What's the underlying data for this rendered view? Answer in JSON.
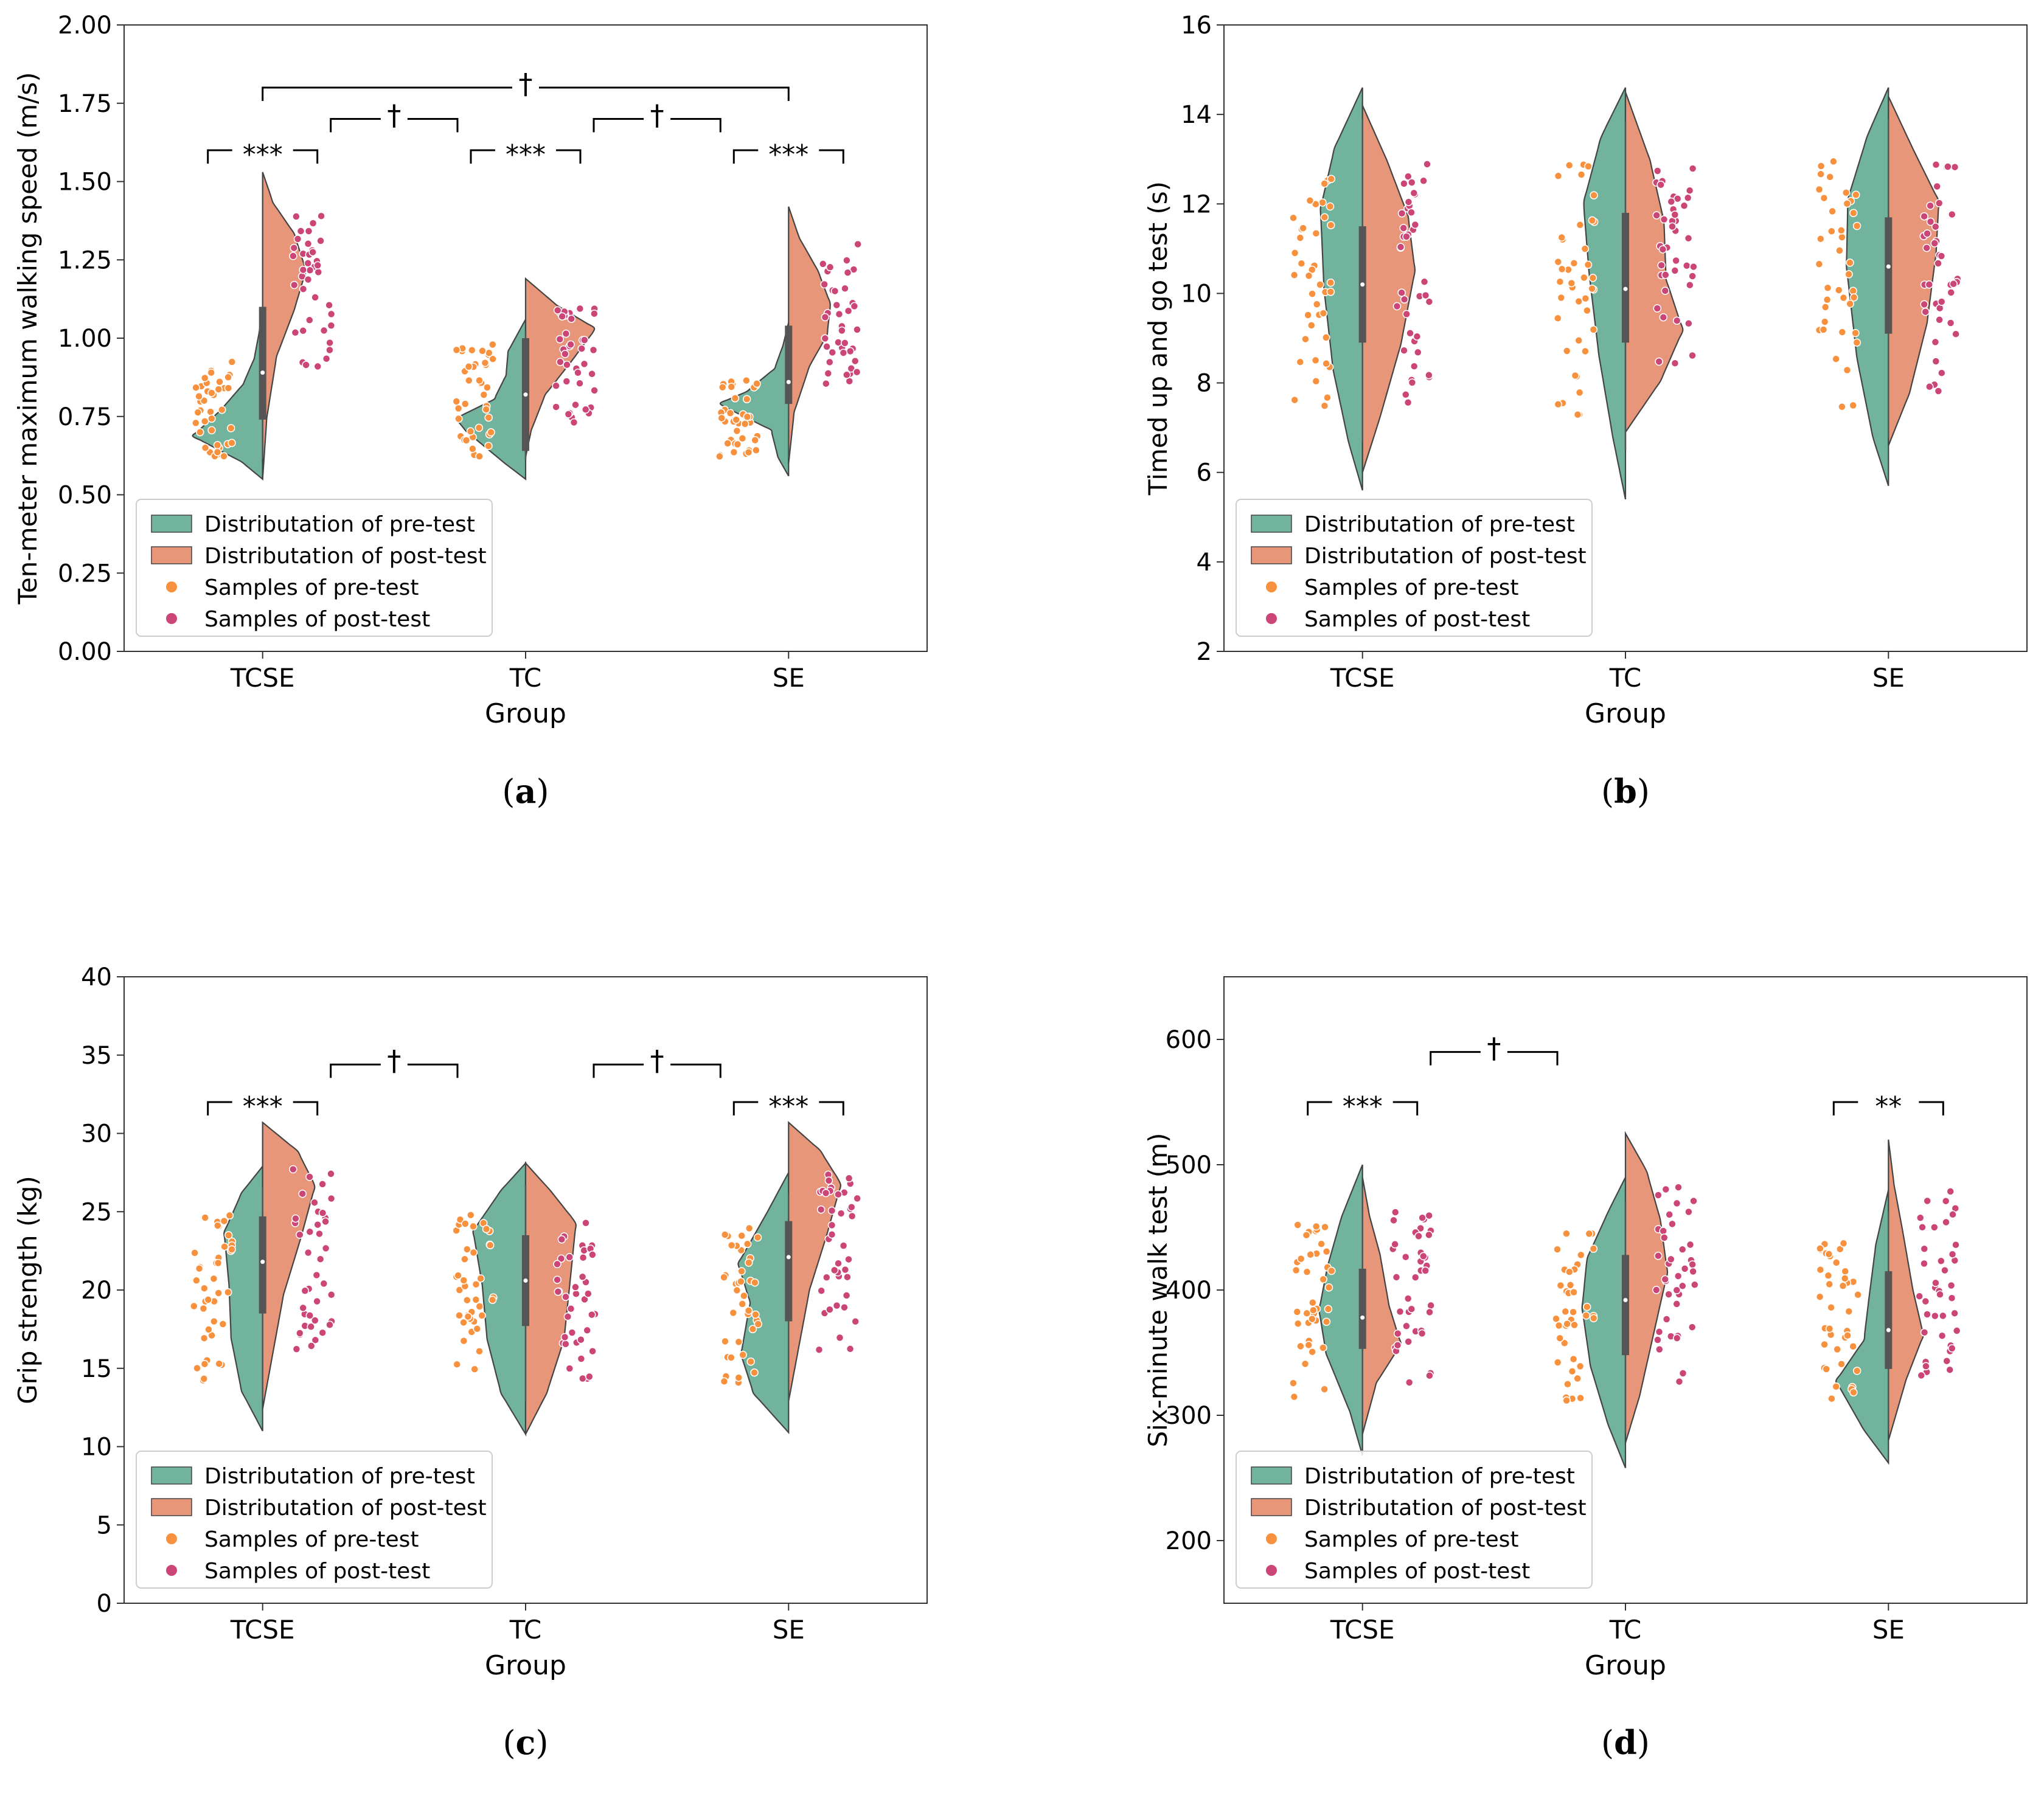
{
  "colors": {
    "pre": "#72b39e",
    "post": "#e8967a",
    "pre_dot": "#f7913e",
    "post_dot": "#cc4577",
    "outline": "#444444",
    "box": "#555555"
  },
  "legend": {
    "dist_pre": "Distributation of pre-test",
    "dist_post": "Distributation of post-test",
    "samp_pre": "Samples of pre-test",
    "samp_post": "Samples of post-test"
  },
  "chart_data": [
    {
      "id": "a",
      "type": "split-violin",
      "caption": "a",
      "ylabel": "Ten-meter maximum walking speed (m/s)",
      "xlabel": "Group",
      "categories": [
        "TCSE",
        "TC",
        "SE"
      ],
      "ylim": [
        0,
        2
      ],
      "yticks": [
        0,
        0.25,
        0.5,
        0.75,
        1.0,
        1.25,
        1.5,
        1.75,
        2.0
      ],
      "ytick_labels": [
        "0.00",
        "0.25",
        "0.50",
        "0.75",
        "1.00",
        "1.25",
        "1.50",
        "1.75",
        "2.00"
      ],
      "series": [
        {
          "name": "pre",
          "groups": [
            {
              "min": 0.55,
              "max": 1.1,
              "q1": 0.74,
              "median": 0.89,
              "q3": 1.1,
              "sample_min": 0.61,
              "sample_max": 0.93
            },
            {
              "min": 0.55,
              "max": 1.06,
              "q1": 0.64,
              "median": 0.82,
              "q3": 1.0,
              "sample_min": 0.62,
              "sample_max": 0.98
            },
            {
              "min": 0.56,
              "max": 1.05,
              "q1": 0.79,
              "median": 0.86,
              "q3": 1.04,
              "sample_min": 0.61,
              "sample_max": 0.87
            }
          ]
        },
        {
          "name": "post",
          "groups": [
            {
              "min": 0.55,
              "max": 1.53,
              "sample_min": 0.87,
              "sample_max": 1.39
            },
            {
              "min": 0.62,
              "max": 1.19,
              "sample_min": 0.73,
              "sample_max": 1.1
            },
            {
              "min": 0.6,
              "max": 1.42,
              "sample_min": 0.84,
              "sample_max": 1.3
            }
          ]
        }
      ],
      "annotations": [
        {
          "label": "***",
          "from": 0,
          "to": 0,
          "y": 1.6
        },
        {
          "label": "†",
          "from": 0,
          "to": 1,
          "y": 1.7
        },
        {
          "label": "***",
          "from": 1,
          "to": 1,
          "y": 1.6
        },
        {
          "label": "†",
          "from": 1,
          "to": 2,
          "y": 1.7
        },
        {
          "label": "***",
          "from": 2,
          "to": 2,
          "y": 1.6
        },
        {
          "label": "†",
          "from": 0,
          "to": 2,
          "y": 1.8
        }
      ]
    },
    {
      "id": "b",
      "type": "split-violin",
      "caption": "b",
      "ylabel": "Timed up and go test (s)",
      "xlabel": "Group",
      "categories": [
        "TCSE",
        "TC",
        "SE"
      ],
      "ylim": [
        2,
        16
      ],
      "yticks": [
        2,
        4,
        6,
        8,
        10,
        12,
        14,
        16
      ],
      "ytick_labels": [
        "2",
        "4",
        "6",
        "8",
        "10",
        "12",
        "14",
        "16"
      ],
      "series": [
        {
          "name": "pre",
          "groups": [
            {
              "min": 5.6,
              "max": 14.6,
              "q1": 8.9,
              "median": 10.2,
              "q3": 11.5,
              "sample_min": 7.2,
              "sample_max": 13.0
            },
            {
              "min": 5.4,
              "max": 14.6,
              "q1": 8.9,
              "median": 10.1,
              "q3": 11.8,
              "sample_min": 7.0,
              "sample_max": 12.9
            },
            {
              "min": 5.7,
              "max": 14.6,
              "q1": 9.1,
              "median": 10.6,
              "q3": 11.7,
              "sample_min": 7.3,
              "sample_max": 13.0
            }
          ]
        },
        {
          "name": "post",
          "groups": [
            {
              "min": 6.0,
              "max": 14.2,
              "sample_min": 7.3,
              "sample_max": 12.9
            },
            {
              "min": 6.9,
              "max": 14.5,
              "sample_min": 8.1,
              "sample_max": 12.9
            },
            {
              "min": 6.6,
              "max": 14.4,
              "sample_min": 7.8,
              "sample_max": 12.9
            }
          ]
        }
      ],
      "annotations": []
    },
    {
      "id": "c",
      "type": "split-violin",
      "caption": "c",
      "ylabel": "Grip strength (kg)",
      "xlabel": "Group",
      "categories": [
        "TCSE",
        "TC",
        "SE"
      ],
      "ylim": [
        0,
        40
      ],
      "yticks": [
        0,
        5,
        10,
        15,
        20,
        25,
        30,
        35,
        40
      ],
      "ytick_labels": [
        "0",
        "5",
        "10",
        "15",
        "20",
        "25",
        "30",
        "35",
        "40"
      ],
      "series": [
        {
          "name": "pre",
          "groups": [
            {
              "min": 11.0,
              "max": 27.9,
              "q1": 18.5,
              "median": 21.8,
              "q3": 24.7,
              "sample_min": 14.2,
              "sample_max": 24.8
            },
            {
              "min": 10.8,
              "max": 28.1,
              "q1": 17.7,
              "median": 20.6,
              "q3": 23.5,
              "sample_min": 14.1,
              "sample_max": 25.0
            },
            {
              "min": 10.9,
              "max": 27.5,
              "q1": 18.0,
              "median": 22.1,
              "q3": 24.4,
              "sample_min": 14.0,
              "sample_max": 24.4
            }
          ]
        },
        {
          "name": "post",
          "groups": [
            {
              "min": 12.4,
              "max": 30.7,
              "sample_min": 15.7,
              "sample_max": 28.0
            },
            {
              "min": 10.8,
              "max": 28.1,
              "sample_min": 14.3,
              "sample_max": 24.9
            },
            {
              "min": 12.9,
              "max": 30.7,
              "sample_min": 15.5,
              "sample_max": 28.0
            }
          ]
        }
      ],
      "annotations": [
        {
          "label": "***",
          "from": 0,
          "to": 0,
          "y": 32
        },
        {
          "label": "†",
          "from": 0,
          "to": 1,
          "y": 34.4
        },
        {
          "label": "†",
          "from": 1,
          "to": 2,
          "y": 34.4
        },
        {
          "label": "***",
          "from": 2,
          "to": 2,
          "y": 32
        }
      ]
    },
    {
      "id": "d",
      "type": "split-violin",
      "caption": "d",
      "ylabel": "Six-minute walk test (m)",
      "xlabel": "Group",
      "categories": [
        "TCSE",
        "TC",
        "SE"
      ],
      "ylim": [
        150,
        650
      ],
      "yticks": [
        200,
        300,
        400,
        500,
        600
      ],
      "ytick_labels": [
        "200",
        "300",
        "400",
        "500",
        "600"
      ],
      "series": [
        {
          "name": "pre",
          "groups": [
            {
              "min": 268,
              "max": 500,
              "q1": 353,
              "median": 378,
              "q3": 417,
              "sample_min": 306,
              "sample_max": 452
            },
            {
              "min": 258,
              "max": 490,
              "q1": 348,
              "median": 392,
              "q3": 428,
              "sample_min": 302,
              "sample_max": 447
            },
            {
              "min": 262,
              "max": 480,
              "q1": 337,
              "median": 368,
              "q3": 415,
              "sample_min": 302,
              "sample_max": 440
            }
          ]
        },
        {
          "name": "post",
          "groups": [
            {
              "min": 285,
              "max": 490,
              "sample_min": 323,
              "sample_max": 465
            },
            {
              "min": 278,
              "max": 525,
              "sample_min": 321,
              "sample_max": 482
            },
            {
              "min": 280,
              "max": 520,
              "sample_min": 321,
              "sample_max": 480
            }
          ]
        }
      ],
      "annotations": [
        {
          "label": "***",
          "from": 0,
          "to": 0,
          "y": 550
        },
        {
          "label": "†",
          "from": 0,
          "to": 1,
          "y": 590
        },
        {
          "label": "**",
          "from": 2,
          "to": 2,
          "y": 550
        }
      ]
    }
  ]
}
